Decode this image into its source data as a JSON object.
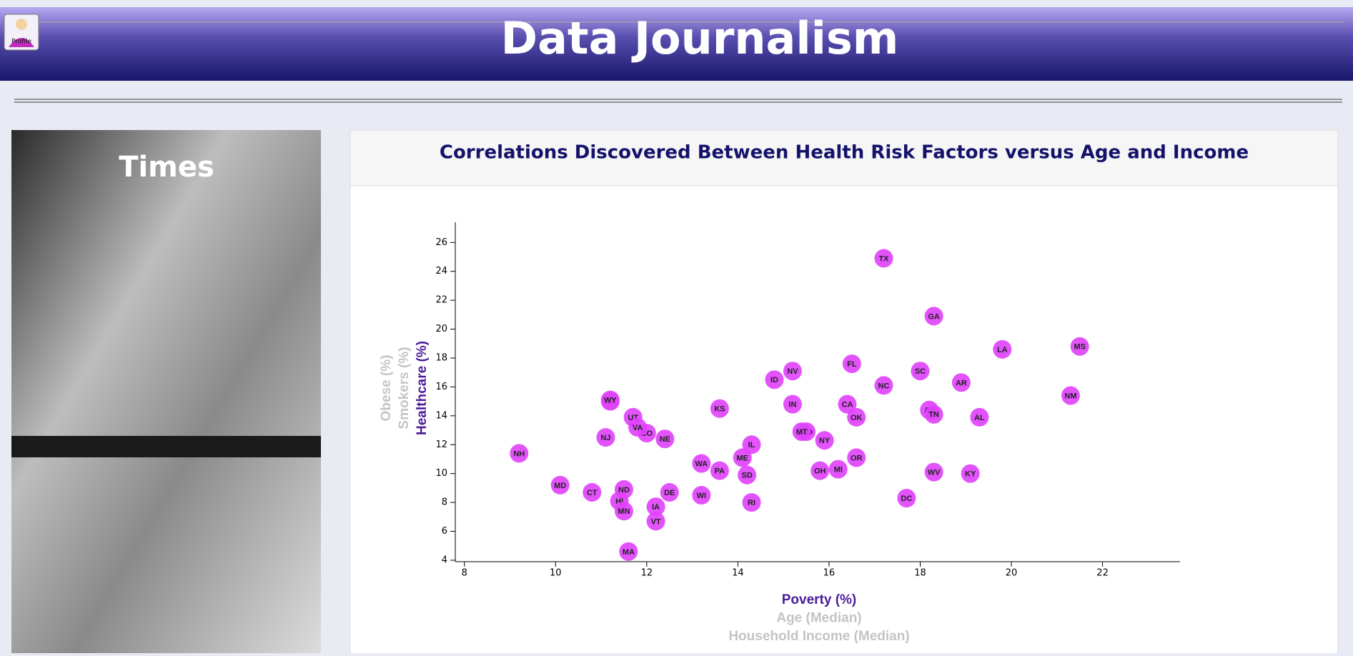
{
  "header": {
    "title": "Data Journalism",
    "profile_label": "Profile"
  },
  "sidebar": {
    "title": "Times"
  },
  "chart_data": {
    "type": "scatter",
    "title": "Correlations Discovered Between Health Risk Factors versus Age and Income",
    "categories": [
      "AL",
      "AK",
      "AZ",
      "AR",
      "CA",
      "CO",
      "CT",
      "DE",
      "DC",
      "FL",
      "GA",
      "HI",
      "ID",
      "IL",
      "IN",
      "IA",
      "KS",
      "KY",
      "LA",
      "ME",
      "MD",
      "MA",
      "MI",
      "MN",
      "MS",
      "MO",
      "MT",
      "NE",
      "NV",
      "NH",
      "NJ",
      "NM",
      "NY",
      "NC",
      "ND",
      "OH",
      "OK",
      "OR",
      "PA",
      "RI",
      "SC",
      "SD",
      "TN",
      "TX",
      "UT",
      "VT",
      "VA",
      "WA",
      "WV",
      "WI",
      "WY"
    ],
    "x": [
      19.3,
      11.2,
      18.2,
      18.9,
      16.4,
      12,
      10.8,
      12.5,
      17.7,
      16.5,
      18.3,
      11.4,
      14.8,
      14.3,
      15.2,
      12.2,
      13.6,
      19.1,
      19.8,
      14.1,
      10.1,
      11.6,
      16.2,
      11.5,
      21.5,
      15.5,
      15.4,
      12.4,
      15.2,
      9.2,
      11.1,
      21.3,
      15.9,
      17.2,
      11.5,
      15.8,
      16.6,
      16.6,
      13.6,
      14.3,
      18,
      14.2,
      18.3,
      17.2,
      11.7,
      12.2,
      11.8,
      13.2,
      18.3,
      13.2,
      11.2
    ],
    "values": [
      13.9,
      15,
      14.4,
      16.3,
      14.8,
      12.8,
      8.7,
      8.7,
      8.3,
      17.6,
      20.9,
      8.1,
      16.5,
      12,
      14.8,
      7.7,
      14.5,
      10,
      18.6,
      11.1,
      9.2,
      4.6,
      10.3,
      7.4,
      18.8,
      12.9,
      12.9,
      12.4,
      17.1,
      11.4,
      12.5,
      15.4,
      12.3,
      16.1,
      8.9,
      10.2,
      13.9,
      11.1,
      10.2,
      8,
      17.1,
      9.9,
      14.1,
      24.9,
      13.9,
      6.7,
      13.2,
      10.7,
      10.1,
      8.5,
      15.1
    ],
    "color": "#e040fb",
    "xlim": [
      7.8,
      23.7
    ],
    "ylim": [
      3.9,
      27.4
    ],
    "xticks": [
      8,
      10,
      12,
      14,
      16,
      18,
      20,
      22
    ],
    "yticks": [
      4,
      6,
      8,
      10,
      12,
      14,
      16,
      18,
      20,
      22,
      24,
      26
    ],
    "x_labels": [
      "Poverty (%)",
      "Age (Median)",
      "Household Income (Median)"
    ],
    "y_labels": [
      "Healthcare (%)",
      "Smokers (%)",
      "Obese (%)"
    ],
    "active_label_color": "#4b1c9a",
    "inactive_label_color": "#c4c4c4"
  }
}
